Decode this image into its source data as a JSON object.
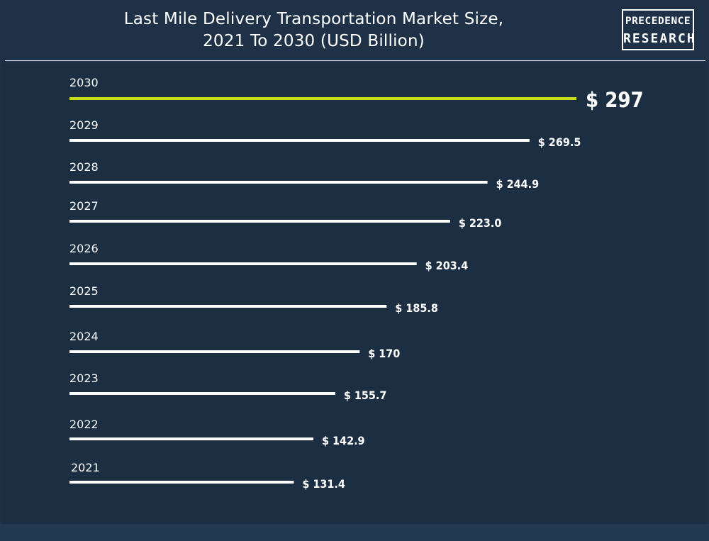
{
  "chart_data": {
    "type": "bar",
    "orientation": "horizontal",
    "title": "Last Mile Delivery Transportation Market Size, 2021 To 2030 (USD Billion)",
    "title_lines": [
      "Last Mile Delivery Transportation Market Size,",
      "2021 To 2030 (USD Billion)"
    ],
    "categories": [
      "2030",
      "2029",
      "2028",
      "2027",
      "2026",
      "2025",
      "2024",
      "2023",
      "2022",
      "2021"
    ],
    "values": [
      297,
      269.5,
      244.9,
      223.0,
      203.4,
      185.8,
      170,
      155.7,
      142.9,
      131.4
    ],
    "value_labels": [
      "$ 297",
      "$ 269.5",
      "$ 244.9",
      "$ 223.0",
      "$ 203.4",
      "$ 185.8",
      "$ 170",
      "$ 155.7",
      "$ 142.9",
      "$ 131.4"
    ],
    "highlight_index": 0,
    "colors": {
      "bar": "#ffffff",
      "highlight_bar": "#c8dc1e",
      "text": "#ffffff",
      "background": "#1e3146"
    },
    "grid": false,
    "legend": "none"
  },
  "brand": {
    "line1": "PRECEDENCE",
    "line2": "RESEARCH"
  }
}
